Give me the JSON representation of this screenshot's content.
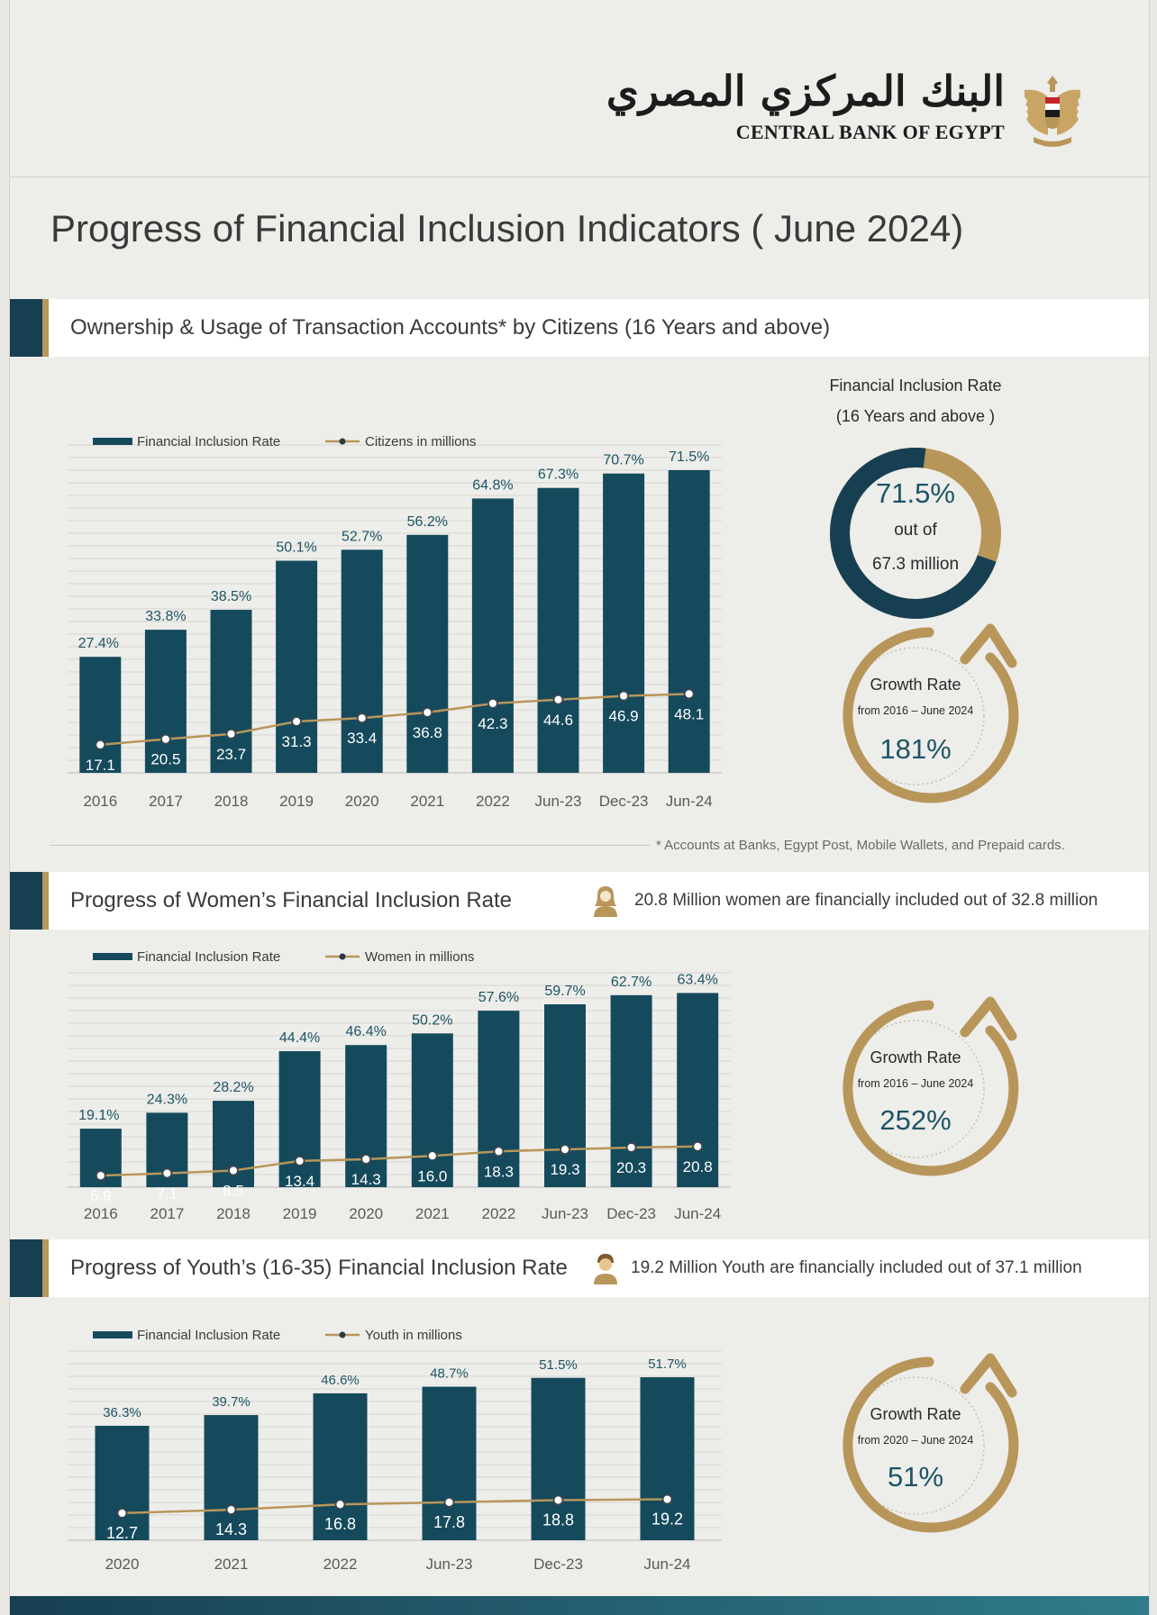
{
  "header": {
    "logo_arabic": "البنك المركزي المصري",
    "logo_english": "CENTRAL BANK OF EGYPT",
    "title": "Progress of Financial Inclusion Indicators ( June 2024)"
  },
  "colors": {
    "bar": "#154a5c",
    "line": "#b8965a",
    "navy": "#173f52",
    "gold": "#b8965a",
    "teal_text": "#1e5466"
  },
  "sections": {
    "citizens": {
      "title": "Ownership & Usage of Transaction Accounts* by Citizens (16 Years and above)",
      "footnote": "* Accounts at Banks, Egypt Post, Mobile Wallets, and Prepaid cards.",
      "donut": {
        "caption_line1": "Financial Inclusion Rate",
        "caption_line2": "(16 Years and above )",
        "value_text": "71.5%",
        "out_of": "out of",
        "total_text": "67.3 million",
        "fraction": 0.715
      },
      "growth": {
        "label": "Growth Rate",
        "period": "from 2016 – June 2024",
        "value": "181%"
      }
    },
    "women": {
      "title": "Progress of Women’s Financial Inclusion Rate",
      "note": "20.8 Million women are financially included out of 32.8 million",
      "growth": {
        "label": "Growth Rate",
        "period": "from 2016 – June 2024",
        "value": "252%"
      }
    },
    "youth": {
      "title": "Progress of Youth’s (16-35) Financial Inclusion Rate",
      "note": "19.2 Million Youth  are financially included out of 37.1 million",
      "growth": {
        "label": "Growth Rate",
        "period": "from 2020 – June 2024",
        "value": "51%"
      }
    }
  },
  "chart_data": [
    {
      "type": "bar",
      "categories": [
        "2016",
        "2017",
        "2018",
        "2019",
        "2020",
        "2021",
        "2022",
        "Jun-23",
        "Dec-23",
        "Jun-24"
      ],
      "series": [
        {
          "name": "Financial Inclusion Rate",
          "values": [
            27.4,
            33.8,
            38.5,
            50.1,
            52.7,
            56.2,
            64.8,
            67.3,
            70.7,
            71.5
          ],
          "labels": [
            "27.4%",
            "33.8%",
            "38.5%",
            "50.1%",
            "52.7%",
            "56.2%",
            "64.8%",
            "67.3%",
            "70.7%",
            "71.5%"
          ]
        },
        {
          "name": "Citizens in millions",
          "type": "line",
          "values": [
            17.1,
            20.5,
            23.7,
            31.3,
            33.4,
            36.8,
            42.3,
            44.6,
            46.9,
            48.1
          ],
          "labels": [
            "17.1",
            "20.5",
            "23.7",
            "31.3",
            "33.4",
            "36.8",
            "42.3",
            "44.6",
            "46.9",
            "48.1"
          ]
        }
      ],
      "ylim": [
        0,
        80
      ],
      "grid": true,
      "legend": "top-left"
    },
    {
      "type": "bar",
      "categories": [
        "2016",
        "2017",
        "2018",
        "2019",
        "2020",
        "2021",
        "2022",
        "Jun-23",
        "Dec-23",
        "Jun-24"
      ],
      "series": [
        {
          "name": "Financial Inclusion Rate",
          "values": [
            19.1,
            24.3,
            28.2,
            44.4,
            46.4,
            50.2,
            57.6,
            59.7,
            62.7,
            63.4
          ],
          "labels": [
            "19.1%",
            "24.3%",
            "28.2%",
            "44.4%",
            "46.4%",
            "50.2%",
            "57.6%",
            "59.7%",
            "62.7%",
            "63.4%"
          ]
        },
        {
          "name": "Women in millions",
          "type": "line",
          "values": [
            5.9,
            7.1,
            8.5,
            13.4,
            14.3,
            16.0,
            18.3,
            19.3,
            20.3,
            20.8
          ],
          "labels": [
            "5.9",
            "7.1",
            "8.5",
            "13.4",
            "14.3",
            "16.0",
            "18.3",
            "19.3",
            "20.3",
            "20.8"
          ]
        }
      ],
      "ylim": [
        0,
        70
      ],
      "grid": true,
      "legend": "top-left"
    },
    {
      "type": "bar",
      "categories": [
        "2020",
        "2021",
        "2022",
        "Jun-23",
        "Dec-23",
        "Jun-24"
      ],
      "series": [
        {
          "name": "Financial Inclusion Rate",
          "values": [
            36.3,
            39.7,
            46.6,
            48.7,
            51.5,
            51.7
          ],
          "labels": [
            "36.3%",
            "39.7%",
            "46.6%",
            "48.7%",
            "51.5%",
            "51.7%"
          ]
        },
        {
          "name": "Youth in millions",
          "type": "line",
          "values": [
            12.7,
            14.3,
            16.8,
            17.8,
            18.8,
            19.2
          ],
          "labels": [
            "12.7",
            "14.3",
            "16.8",
            "17.8",
            "18.8",
            "19.2"
          ]
        }
      ],
      "ylim": [
        0,
        60
      ],
      "grid": true,
      "legend": "top-left"
    }
  ]
}
